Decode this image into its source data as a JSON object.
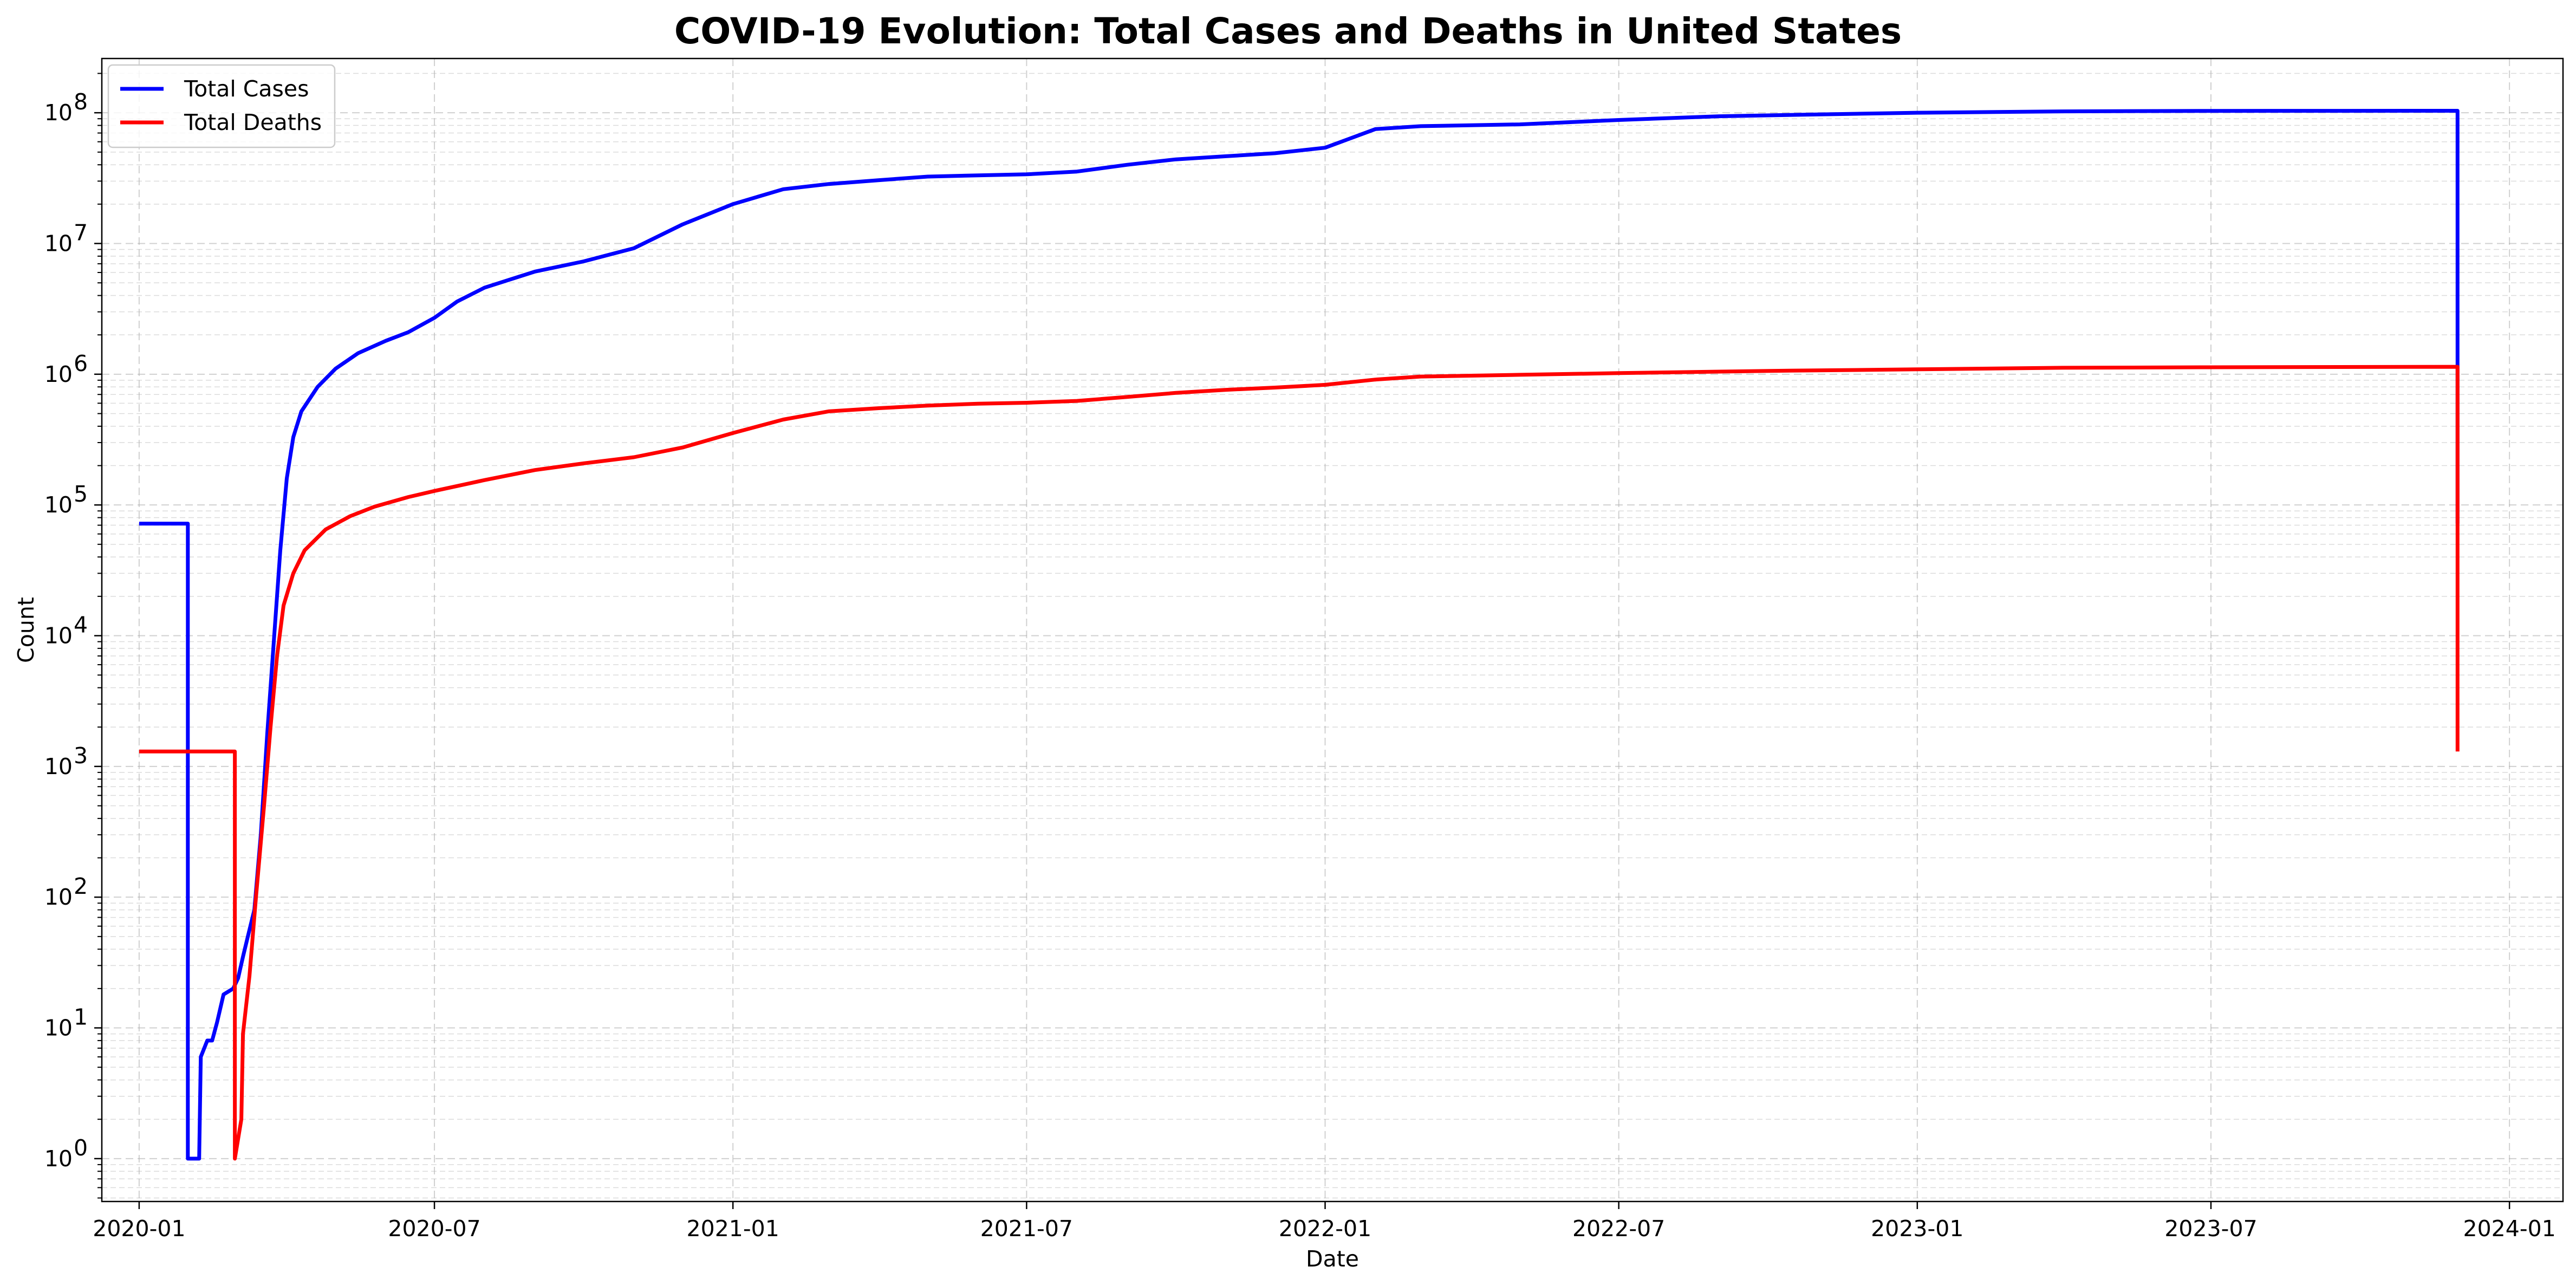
{
  "chart_data": {
    "type": "line",
    "title": "COVID-19 Evolution: Total Cases and Deaths in United States",
    "xlabel": "Date",
    "ylabel": "Count",
    "yscale": "log",
    "ylim": [
      0.47,
      260000000
    ],
    "xlim": [
      "2019-12-09",
      "2024-02-03"
    ],
    "grid": true,
    "grid_style": "dashed",
    "legend_position": "upper-left",
    "x_ticks": [
      "2020-01",
      "2020-07",
      "2021-01",
      "2021-07",
      "2022-01",
      "2022-07",
      "2023-01",
      "2023-07",
      "2024-01"
    ],
    "y_ticks": [
      {
        "value": 1,
        "base": "10",
        "exp": "0"
      },
      {
        "value": 10,
        "base": "10",
        "exp": "1"
      },
      {
        "value": 100,
        "base": "10",
        "exp": "2"
      },
      {
        "value": 1000,
        "base": "10",
        "exp": "3"
      },
      {
        "value": 10000,
        "base": "10",
        "exp": "4"
      },
      {
        "value": 100000,
        "base": "10",
        "exp": "5"
      },
      {
        "value": 1000000,
        "base": "10",
        "exp": "6"
      },
      {
        "value": 10000000,
        "base": "10",
        "exp": "7"
      },
      {
        "value": 100000000,
        "base": "10",
        "exp": "8"
      }
    ],
    "series": [
      {
        "name": "Total Cases",
        "color": "#0000ff",
        "points": [
          [
            "2020-01-01",
            72000
          ],
          [
            "2020-01-31",
            72000
          ],
          [
            "2020-01-31",
            1
          ],
          [
            "2020-02-07",
            1
          ],
          [
            "2020-02-08",
            6
          ],
          [
            "2020-02-12",
            8
          ],
          [
            "2020-02-15",
            8
          ],
          [
            "2020-02-18",
            11
          ],
          [
            "2020-02-22",
            18
          ],
          [
            "2020-02-28",
            20
          ],
          [
            "2020-03-02",
            24
          ],
          [
            "2020-03-05",
            35
          ],
          [
            "2020-03-08",
            50
          ],
          [
            "2020-03-12",
            80
          ],
          [
            "2020-03-16",
            300
          ],
          [
            "2020-03-20",
            1800
          ],
          [
            "2020-03-24",
            9000
          ],
          [
            "2020-03-28",
            45000
          ],
          [
            "2020-04-01",
            160000
          ],
          [
            "2020-04-05",
            330000
          ],
          [
            "2020-04-10",
            520000
          ],
          [
            "2020-04-20",
            800000
          ],
          [
            "2020-05-01",
            1100000
          ],
          [
            "2020-05-15",
            1450000
          ],
          [
            "2020-06-01",
            1800000
          ],
          [
            "2020-06-15",
            2100000
          ],
          [
            "2020-07-01",
            2700000
          ],
          [
            "2020-07-15",
            3600000
          ],
          [
            "2020-08-01",
            4600000
          ],
          [
            "2020-09-01",
            6100000
          ],
          [
            "2020-10-01",
            7300000
          ],
          [
            "2020-11-01",
            9200000
          ],
          [
            "2020-12-01",
            14000000
          ],
          [
            "2021-01-01",
            20000000
          ],
          [
            "2021-02-01",
            26000000
          ],
          [
            "2021-03-01",
            28500000
          ],
          [
            "2021-04-01",
            30500000
          ],
          [
            "2021-05-01",
            32500000
          ],
          [
            "2021-06-01",
            33200000
          ],
          [
            "2021-07-01",
            33800000
          ],
          [
            "2021-08-01",
            35500000
          ],
          [
            "2021-09-01",
            40000000
          ],
          [
            "2021-10-01",
            44000000
          ],
          [
            "2021-11-01",
            46500000
          ],
          [
            "2021-12-01",
            49000000
          ],
          [
            "2022-01-01",
            54000000
          ],
          [
            "2022-02-01",
            75000000
          ],
          [
            "2022-03-01",
            79000000
          ],
          [
            "2022-05-01",
            81500000
          ],
          [
            "2022-07-01",
            88000000
          ],
          [
            "2022-09-01",
            94000000
          ],
          [
            "2022-11-01",
            97000000
          ],
          [
            "2023-01-01",
            100000000
          ],
          [
            "2023-04-01",
            102500000
          ],
          [
            "2023-07-01",
            103300000
          ],
          [
            "2023-11-30",
            103500000
          ],
          [
            "2023-11-30",
            72000
          ]
        ]
      },
      {
        "name": "Total Deaths",
        "color": "#ff0000",
        "points": [
          [
            "2020-01-01",
            1300
          ],
          [
            "2020-02-29",
            1300
          ],
          [
            "2020-02-29",
            1
          ],
          [
            "2020-03-04",
            2
          ],
          [
            "2020-03-05",
            9
          ],
          [
            "2020-03-09",
            25
          ],
          [
            "2020-03-13",
            100
          ],
          [
            "2020-03-18",
            500
          ],
          [
            "2020-03-22",
            2000
          ],
          [
            "2020-03-26",
            7000
          ],
          [
            "2020-03-30",
            17000
          ],
          [
            "2020-04-05",
            30000
          ],
          [
            "2020-04-12",
            45000
          ],
          [
            "2020-04-25",
            65000
          ],
          [
            "2020-05-10",
            82000
          ],
          [
            "2020-05-25",
            97000
          ],
          [
            "2020-06-15",
            115000
          ],
          [
            "2020-07-01",
            128000
          ],
          [
            "2020-08-01",
            155000
          ],
          [
            "2020-09-01",
            185000
          ],
          [
            "2020-10-01",
            208000
          ],
          [
            "2020-11-01",
            232000
          ],
          [
            "2020-12-01",
            275000
          ],
          [
            "2021-01-01",
            355000
          ],
          [
            "2021-02-01",
            450000
          ],
          [
            "2021-03-01",
            520000
          ],
          [
            "2021-04-01",
            550000
          ],
          [
            "2021-05-01",
            575000
          ],
          [
            "2021-06-01",
            595000
          ],
          [
            "2021-07-01",
            605000
          ],
          [
            "2021-08-01",
            625000
          ],
          [
            "2021-09-01",
            670000
          ],
          [
            "2021-10-01",
            720000
          ],
          [
            "2021-11-01",
            760000
          ],
          [
            "2021-12-01",
            790000
          ],
          [
            "2022-01-01",
            830000
          ],
          [
            "2022-02-01",
            910000
          ],
          [
            "2022-03-01",
            960000
          ],
          [
            "2022-05-01",
            990000
          ],
          [
            "2022-07-01",
            1020000
          ],
          [
            "2022-10-01",
            1060000
          ],
          [
            "2023-01-01",
            1090000
          ],
          [
            "2023-04-01",
            1120000
          ],
          [
            "2023-07-01",
            1130000
          ],
          [
            "2023-11-30",
            1140000
          ],
          [
            "2023-11-30",
            1300
          ]
        ]
      }
    ]
  }
}
